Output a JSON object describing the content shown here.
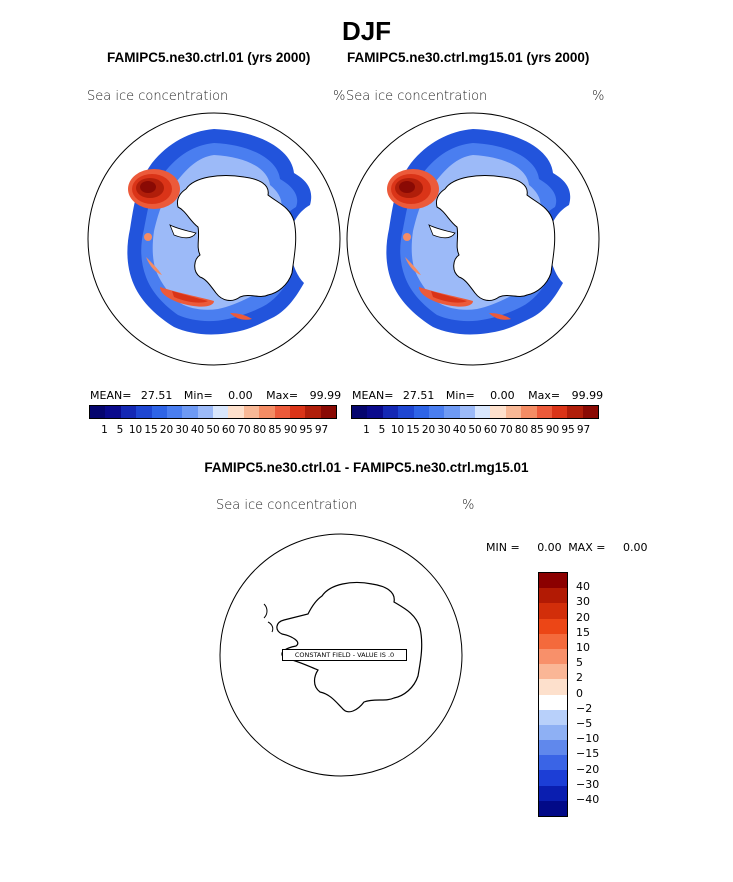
{
  "title": "DJF",
  "panels": [
    {
      "case": "FAMIPC5.ne30.ctrl.01 (yrs 2000)",
      "variable": "Sea ice concentration",
      "units": "%",
      "stats": {
        "mean_label": "MEAN=",
        "mean": "27.51",
        "min_label": "Min=",
        "min": "0.00",
        "max_label": "Max=",
        "max": "99.99"
      }
    },
    {
      "case": "FAMIPC5.ne30.ctrl.mg15.01 (yrs 2000)",
      "variable": "Sea ice concentration",
      "units": "%",
      "stats": {
        "mean_label": "MEAN=",
        "mean": "27.51",
        "min_label": "Min=",
        "min": "0.00",
        "max_label": "Max=",
        "max": "99.99"
      }
    }
  ],
  "colorbar": {
    "levels": [
      "1",
      "5",
      "10",
      "15",
      "20",
      "30",
      "40",
      "50",
      "60",
      "70",
      "80",
      "85",
      "90",
      "95",
      "97"
    ],
    "colors": [
      "#0a0a8c",
      "#1428b4",
      "#1e46d2",
      "#2e64e6",
      "#4a7ef0",
      "#6e9af4",
      "#9cbaf8",
      "#d8e6fc",
      "#fde0cc",
      "#f8b896",
      "#f48c64",
      "#ec5a3a",
      "#da3418",
      "#b01e0a",
      "#8a0a04"
    ]
  },
  "difference": {
    "title": "FAMIPC5.ne30.ctrl.01 - FAMIPC5.ne30.ctrl.mg15.01",
    "variable": "Sea ice concentration",
    "units": "%",
    "min_label": "MIN =",
    "min": "0.00",
    "max_label": "MAX =",
    "max": "0.00",
    "constant_field_text": "CONSTANT FIELD - VALUE IS .0",
    "colorbar": {
      "labels": [
        "40",
        "30",
        "20",
        "15",
        "10",
        "5",
        "2",
        "0",
        "−2",
        "−5",
        "−10",
        "−15",
        "−20",
        "−30",
        "−40"
      ],
      "colors": [
        "#8b0000",
        "#b21a04",
        "#d22e0a",
        "#ec4616",
        "#f46a3c",
        "#f8906a",
        "#fab696",
        "#fde0cc",
        "#ffffff",
        "#b8d0fa",
        "#8eb0f4",
        "#6088ec",
        "#3a64e6",
        "#1c3ed6",
        "#0a1eb0",
        "#020a88"
      ]
    }
  }
}
